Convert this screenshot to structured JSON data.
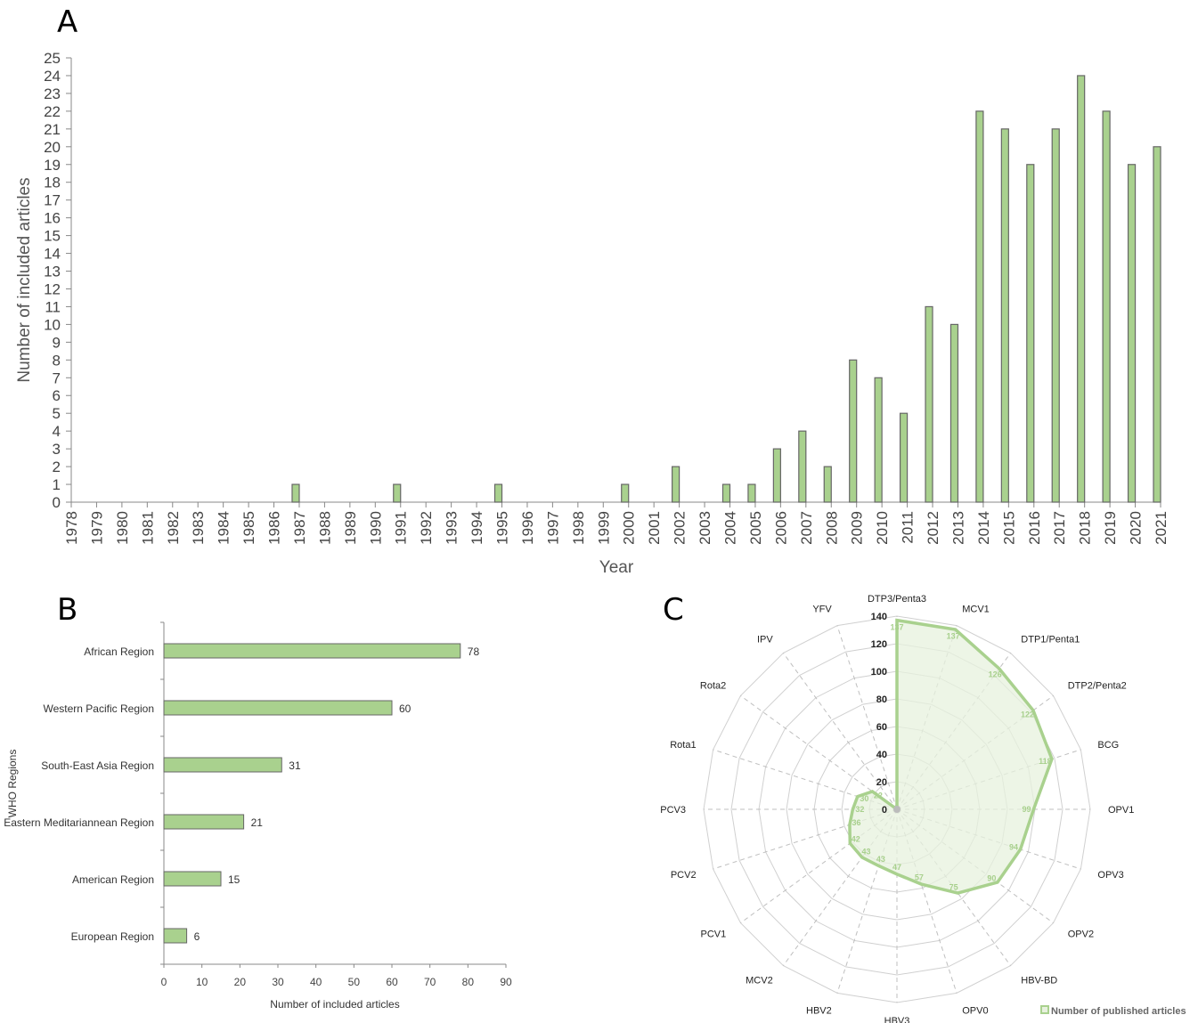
{
  "colors": {
    "bar_fill": "#a9d18e",
    "bar_stroke": "#666666",
    "radar_line": "#a9d18e",
    "radar_fill": "#e7f1de",
    "axis": "#888888",
    "grid_dashed": "#bfbfbf"
  },
  "chart_data": [
    {
      "panel": "A",
      "type": "bar",
      "xlabel": "Year",
      "ylabel": "Number of included articles",
      "ylim": [
        0,
        25
      ],
      "yticks": [
        0,
        1,
        2,
        3,
        4,
        5,
        6,
        7,
        8,
        9,
        10,
        11,
        12,
        13,
        14,
        15,
        16,
        17,
        18,
        19,
        20,
        21,
        22,
        23,
        24,
        25
      ],
      "categories": [
        "1978",
        "1979",
        "1980",
        "1981",
        "1982",
        "1983",
        "1984",
        "1985",
        "1986",
        "1987",
        "1988",
        "1989",
        "1990",
        "1991",
        "1992",
        "1993",
        "1994",
        "1995",
        "1996",
        "1997",
        "1998",
        "1999",
        "2000",
        "2001",
        "2002",
        "2003",
        "2004",
        "2005",
        "2006",
        "2007",
        "2008",
        "2009",
        "2010",
        "2011",
        "2012",
        "2013",
        "2014",
        "2015",
        "2016",
        "2017",
        "2018",
        "2019",
        "2020",
        "2021"
      ],
      "values": [
        0,
        0,
        0,
        0,
        0,
        0,
        0,
        0,
        0,
        1,
        0,
        0,
        0,
        1,
        0,
        0,
        0,
        1,
        0,
        0,
        0,
        0,
        1,
        0,
        2,
        0,
        1,
        1,
        3,
        4,
        2,
        8,
        7,
        5,
        11,
        10,
        22,
        21,
        19,
        21,
        24,
        22,
        19,
        20
      ]
    },
    {
      "panel": "B",
      "type": "bar",
      "orientation": "horizontal",
      "xlabel": "Number of included articles",
      "ylabel": "WHO Regions",
      "xlim": [
        0,
        90
      ],
      "xticks": [
        "0",
        "10",
        "20",
        "30",
        "40",
        "50",
        "60",
        "70",
        "80",
        "90"
      ],
      "categories": [
        "African Region",
        "Western Pacific Region",
        "South-East Asia Region",
        "Eastern Meditariannean Region",
        "American Region",
        "European Region"
      ],
      "values": [
        78,
        60,
        31,
        21,
        15,
        6
      ],
      "value_labels": [
        "78",
        "60",
        "31",
        "21",
        "15",
        "6"
      ]
    },
    {
      "panel": "C",
      "type": "radar",
      "rlim": [
        0,
        140
      ],
      "ring_labels": [
        "0",
        "20",
        "40",
        "60",
        "80",
        "100",
        "120",
        "140"
      ],
      "categories": [
        "DTP3/Penta3",
        "MCV1",
        "DTP1/Penta1",
        "DTP2/Penta2",
        "BCG",
        "OPV1",
        "OPV3",
        "OPV2",
        "HBV-BD",
        "OPV0",
        "HBV3",
        "HBV2",
        "MCV2",
        "PCV1",
        "PCV2",
        "PCV3",
        "Rota1",
        "Rota2",
        "IPV",
        "YFV"
      ],
      "values": [
        137,
        137,
        126,
        122,
        118,
        99,
        94,
        90,
        75,
        57,
        47,
        43,
        43,
        42,
        36,
        32,
        30,
        22,
        0,
        0
      ],
      "value_labels": [
        "137",
        "137",
        "126",
        "122",
        "118",
        "99",
        "94",
        "90",
        "75",
        "57",
        "47",
        "43",
        "43",
        "42",
        "36",
        "32",
        "30",
        "22",
        "",
        ""
      ],
      "legend": "Number of published articles",
      "legend_position": "bottom-right"
    }
  ]
}
